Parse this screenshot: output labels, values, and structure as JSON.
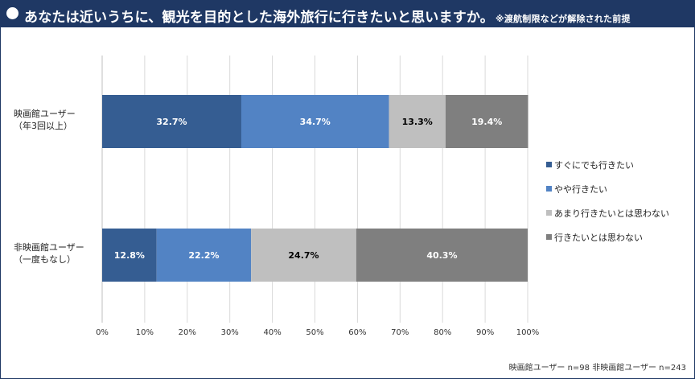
{
  "header": {
    "title": "あなたは近いうちに、観光を目的とした海外旅行に行きたいと思いますか。",
    "note": "※渡航制限などが解除された前提"
  },
  "footnote": "映画館ユーザー n=98 非映画館ユーザー n=243",
  "colors": [
    "#355d92",
    "#5283c4",
    "#bfbfbf",
    "#7f7f7f"
  ],
  "chart_data": {
    "type": "bar",
    "orientation": "horizontal",
    "stacked": true,
    "categories": [
      [
        "映画館ユーザー",
        "（年3回以上）"
      ],
      [
        "非映画館ユーザー",
        "（一度もなし）"
      ]
    ],
    "series": [
      {
        "name": "すぐにでも行きたい",
        "values": [
          32.7,
          12.8
        ]
      },
      {
        "name": "やや行きたい",
        "values": [
          34.7,
          22.2
        ]
      },
      {
        "name": "あまり行きたいとは思わない",
        "values": [
          13.3,
          24.7
        ]
      },
      {
        "name": "行きたいとは思わない",
        "values": [
          19.4,
          40.3
        ]
      }
    ],
    "data_label_colors": [
      "#ffffff",
      "#ffffff",
      "#000000",
      "#ffffff"
    ],
    "xlim": [
      0,
      100
    ],
    "ticks": [
      "0%",
      "10%",
      "20%",
      "30%",
      "40%",
      "50%",
      "60%",
      "70%",
      "80%",
      "90%",
      "100%"
    ],
    "grid": true,
    "legend_position": "right"
  }
}
